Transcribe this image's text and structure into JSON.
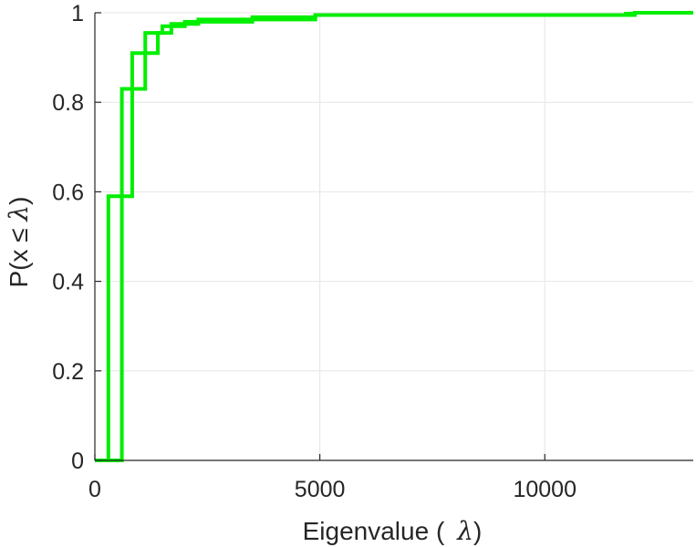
{
  "chart_data": {
    "type": "line",
    "subtype": "empirical-cdf-step",
    "xlabel_prefix": "Eigenvalue (",
    "xlabel_symbol": "λ",
    "xlabel_suffix": ")",
    "ylabel_prefix": "P(x ≤ ",
    "ylabel_symbol": "λ",
    "ylabel_suffix": ")",
    "xlim": [
      0,
      13300
    ],
    "ylim": [
      0,
      1
    ],
    "x_ticks": [
      0,
      5000,
      10000
    ],
    "x_tick_labels": [
      "0",
      "5000",
      "10000"
    ],
    "y_ticks": [
      0,
      0.2,
      0.4,
      0.6,
      0.8,
      1
    ],
    "y_tick_labels": [
      "0",
      "0.2",
      "0.4",
      "0.6",
      "0.8",
      "1"
    ],
    "grid": true,
    "box": false,
    "color": "#00ee00",
    "series": [
      {
        "steps": [
          [
            300,
            0.59
          ],
          [
            830,
            0.91
          ],
          [
            1120,
            0.955
          ],
          [
            1700,
            0.975
          ],
          [
            2300,
            0.985
          ],
          [
            4900,
            0.995
          ],
          [
            11800,
            0.998
          ],
          [
            12000,
            1.0
          ]
        ]
      },
      {
        "steps": [
          [
            600,
            0.83
          ],
          [
            1120,
            0.91
          ],
          [
            1400,
            0.955
          ],
          [
            1500,
            0.97
          ],
          [
            2000,
            0.98
          ],
          [
            3500,
            0.99
          ],
          [
            4900,
            0.995
          ],
          [
            12000,
            1.0
          ]
        ]
      }
    ]
  }
}
